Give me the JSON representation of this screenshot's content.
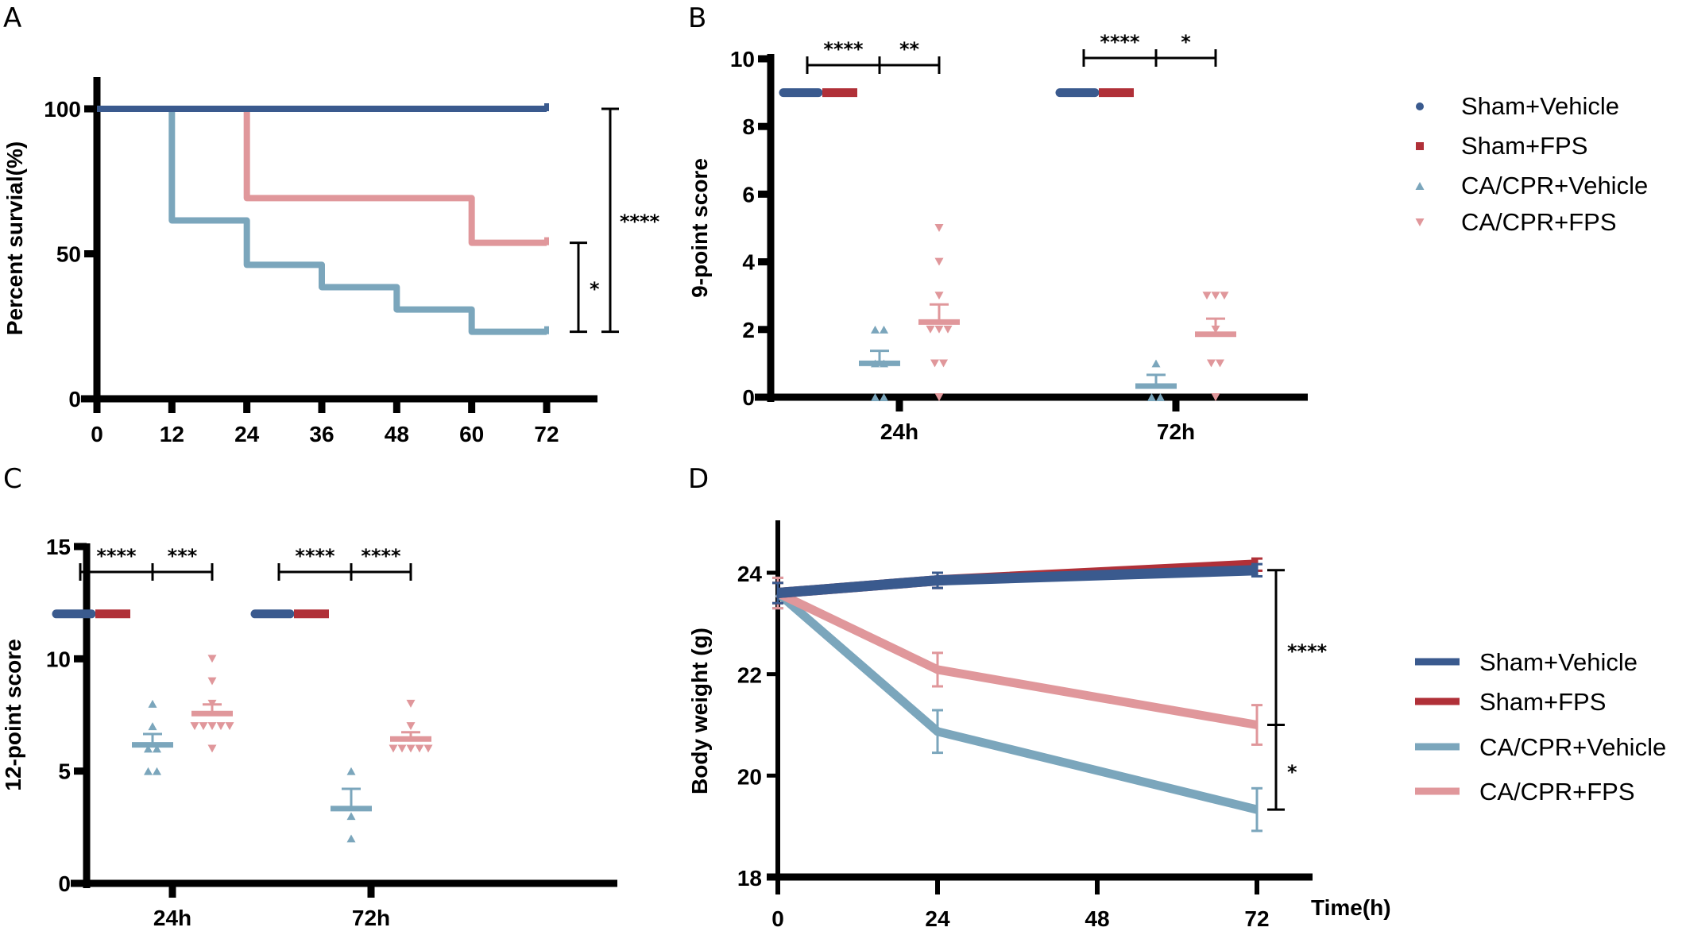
{
  "colors": {
    "sham_vehicle": "#3a5a8e",
    "sham_fps": "#b03038",
    "cacpr_vehicle": "#7ba6bc",
    "cacpr_fps": "#e0979b",
    "axis": "#000000"
  },
  "groups": [
    "Sham+Vehicle",
    "Sham+FPS",
    "CA/CPR+Vehicle",
    "CA/CPR+FPS"
  ],
  "chart_data": [
    {
      "panel": "A",
      "type": "line",
      "subtype": "kaplan-meier-step",
      "title": "",
      "xlabel": "",
      "ylabel": "Percent survial(%)",
      "xlim": [
        0,
        72
      ],
      "ylim": [
        0,
        100
      ],
      "xticks": [
        "0",
        "12",
        "24",
        "36",
        "48",
        "60",
        "72"
      ],
      "yticks": [
        "0",
        "50",
        "100"
      ],
      "series": [
        {
          "name": "Sham+Vehicle",
          "color_key": "sham_vehicle",
          "x": [
            0,
            72
          ],
          "y": [
            100,
            100
          ]
        },
        {
          "name": "Sham+FPS",
          "color_key": "sham_fps",
          "x": [
            0,
            72
          ],
          "y": [
            100,
            100
          ]
        },
        {
          "name": "CA/CPR+Vehicle",
          "color_key": "cacpr_vehicle",
          "x": [
            0,
            12,
            24,
            36,
            48,
            60,
            72
          ],
          "y": [
            100,
            61.5,
            46.2,
            38.5,
            30.8,
            23.1,
            23.1
          ]
        },
        {
          "name": "CA/CPR+FPS",
          "color_key": "cacpr_fps",
          "x": [
            0,
            24,
            60,
            72
          ],
          "y": [
            100,
            69.2,
            53.8,
            53.8
          ]
        }
      ],
      "significance": [
        {
          "label": "*",
          "from_y": 23.1,
          "to_y": 53.8
        },
        {
          "label": "****",
          "from_y": 23.1,
          "to_y": 100
        }
      ]
    },
    {
      "panel": "B",
      "type": "scatter",
      "subtype": "dot-plot-mean-sem",
      "ylabel": "9-point score",
      "xlabel": "",
      "ylim": [
        0,
        10
      ],
      "yticks": [
        "0",
        "2",
        "4",
        "6",
        "8",
        "10"
      ],
      "categories": [
        "24h",
        "72h"
      ],
      "series": [
        {
          "name": "Sham+Vehicle",
          "color_key": "sham_vehicle",
          "values": {
            "24h": {
              "mean": 9,
              "sem": 0
            },
            "72h": {
              "mean": 9,
              "sem": 0
            }
          }
        },
        {
          "name": "Sham+FPS",
          "color_key": "sham_fps",
          "values": {
            "24h": {
              "mean": 9,
              "sem": 0
            },
            "72h": {
              "mean": 9,
              "sem": 0
            }
          }
        },
        {
          "name": "CA/CPR+Vehicle",
          "color_key": "cacpr_vehicle",
          "values": {
            "24h": {
              "points": [
                2,
                2,
                1,
                1,
                0,
                0
              ],
              "mean": 1.0,
              "sem": 0.37
            },
            "72h": {
              "points": [
                1,
                0,
                0
              ],
              "mean": 0.33,
              "sem": 0.33
            }
          }
        },
        {
          "name": "CA/CPR+FPS",
          "color_key": "cacpr_fps",
          "values": {
            "24h": {
              "points": [
                5,
                4,
                3,
                2,
                2,
                2,
                1,
                1,
                0
              ],
              "mean": 2.22,
              "sem": 0.52
            },
            "72h": {
              "points": [
                3,
                3,
                3,
                2,
                1,
                1,
                0
              ],
              "mean": 1.86,
              "sem": 0.46
            }
          }
        }
      ],
      "significance": [
        {
          "category": "24h",
          "label": "****",
          "between": [
            "Sham+Vehicle",
            "CA/CPR+Vehicle"
          ]
        },
        {
          "category": "24h",
          "label": "**",
          "between": [
            "CA/CPR+Vehicle",
            "CA/CPR+FPS"
          ]
        },
        {
          "category": "72h",
          "label": "****",
          "between": [
            "Sham+Vehicle",
            "CA/CPR+Vehicle"
          ]
        },
        {
          "category": "72h",
          "label": "*",
          "between": [
            "CA/CPR+Vehicle",
            "CA/CPR+FPS"
          ]
        }
      ],
      "legend": {
        "entries": [
          "Sham+Vehicle",
          "Sham+FPS",
          "CA/CPR+Vehicle",
          "CA/CPR+FPS"
        ],
        "markers": [
          "circle",
          "square",
          "triangle-up",
          "triangle-down"
        ],
        "placement": "right"
      }
    },
    {
      "panel": "C",
      "type": "scatter",
      "subtype": "dot-plot-mean-sem",
      "ylabel": "12-point score",
      "xlabel": "",
      "ylim": [
        0,
        15
      ],
      "yticks": [
        "0",
        "5",
        "10",
        "15"
      ],
      "categories": [
        "24h",
        "72h"
      ],
      "series": [
        {
          "name": "Sham+Vehicle",
          "color_key": "sham_vehicle",
          "values": {
            "24h": {
              "mean": 12,
              "sem": 0
            },
            "72h": {
              "mean": 12,
              "sem": 0
            }
          }
        },
        {
          "name": "Sham+FPS",
          "color_key": "sham_fps",
          "values": {
            "24h": {
              "mean": 12,
              "sem": 0
            },
            "72h": {
              "mean": 12,
              "sem": 0
            }
          }
        },
        {
          "name": "CA/CPR+Vehicle",
          "color_key": "cacpr_vehicle",
          "values": {
            "24h": {
              "points": [
                8,
                7,
                6,
                6,
                5,
                5
              ],
              "mean": 6.17,
              "sem": 0.48
            },
            "72h": {
              "points": [
                5,
                3,
                2
              ],
              "mean": 3.33,
              "sem": 0.88
            }
          }
        },
        {
          "name": "CA/CPR+FPS",
          "color_key": "cacpr_fps",
          "values": {
            "24h": {
              "points": [
                10,
                9,
                8,
                7,
                7,
                7,
                7,
                7,
                6
              ],
              "mean": 7.56,
              "sem": 0.41
            },
            "72h": {
              "points": [
                8,
                7,
                6,
                6,
                6,
                6,
                6
              ],
              "mean": 6.43,
              "sem": 0.3
            }
          }
        }
      ],
      "significance": [
        {
          "category": "24h",
          "label": "****",
          "between": [
            "Sham+Vehicle",
            "CA/CPR+Vehicle"
          ]
        },
        {
          "category": "24h",
          "label": "***",
          "between": [
            "CA/CPR+Vehicle",
            "CA/CPR+FPS"
          ]
        },
        {
          "category": "72h",
          "label": "****",
          "between": [
            "Sham+Vehicle",
            "CA/CPR+Vehicle"
          ]
        },
        {
          "category": "72h",
          "label": "****",
          "between": [
            "CA/CPR+Vehicle",
            "CA/CPR+FPS"
          ]
        }
      ]
    },
    {
      "panel": "D",
      "type": "line",
      "subtype": "mean-sem-lines",
      "ylabel": "Body weight (g)",
      "xlabel": "Time(h)",
      "xlim": [
        0,
        72
      ],
      "ylim": [
        18,
        25
      ],
      "xticks": [
        "0",
        "24",
        "48",
        "72"
      ],
      "yticks": [
        "18",
        "20",
        "22",
        "24"
      ],
      "x": [
        0,
        24,
        72
      ],
      "series": [
        {
          "name": "Sham+Vehicle",
          "color_key": "sham_vehicle",
          "y": [
            23.6,
            23.85,
            24.05
          ],
          "sem": [
            0.2,
            0.15,
            0.12
          ]
        },
        {
          "name": "Sham+FPS",
          "color_key": "sham_fps",
          "y": [
            23.6,
            23.85,
            24.16
          ],
          "sem": [
            0.2,
            0.15,
            0.12
          ]
        },
        {
          "name": "CA/CPR+Vehicle",
          "color_key": "cacpr_vehicle",
          "y": [
            23.6,
            20.87,
            19.33
          ],
          "sem": [
            0.3,
            0.42,
            0.42
          ]
        },
        {
          "name": "CA/CPR+FPS",
          "color_key": "cacpr_fps",
          "y": [
            23.6,
            22.09,
            21.0
          ],
          "sem": [
            0.3,
            0.33,
            0.39
          ]
        }
      ],
      "significance": [
        {
          "label": "****",
          "from_y": 21.0,
          "to_y": 24.05
        },
        {
          "label": "*",
          "from_y": 19.33,
          "to_y": 21.0
        }
      ],
      "legend": {
        "entries": [
          "Sham+Vehicle",
          "Sham+FPS",
          "CA/CPR+Vehicle",
          "CA/CPR+FPS"
        ],
        "placement": "right"
      }
    }
  ],
  "panels": {
    "A": {
      "letter": "A"
    },
    "B": {
      "letter": "B"
    },
    "C": {
      "letter": "C"
    },
    "D": {
      "letter": "D"
    }
  }
}
